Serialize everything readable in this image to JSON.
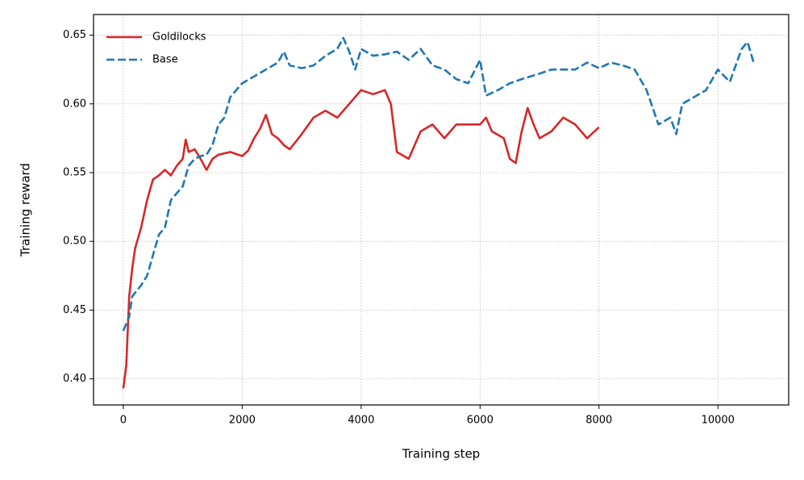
{
  "chart_data": {
    "type": "line",
    "xlabel": "Training step",
    "ylabel": "Training reward",
    "xlim": [
      -500,
      11190
    ],
    "ylim": [
      0.381,
      0.665
    ],
    "xticks": [
      0,
      2000,
      4000,
      6000,
      8000,
      10000
    ],
    "yticks": [
      {
        "value": 0.4,
        "label": "0.40"
      },
      {
        "value": 0.45,
        "label": "0.45"
      },
      {
        "value": 0.5,
        "label": "0.50"
      },
      {
        "value": 0.55,
        "label": "0.55"
      },
      {
        "value": 0.6,
        "label": "0.60"
      },
      {
        "value": 0.65,
        "label": "0.65"
      }
    ],
    "grid": true,
    "legend": "upper left",
    "series": [
      {
        "name": "Goldilocks",
        "color": "#d62728",
        "dash": "solid",
        "x": [
          0,
          50,
          100,
          150,
          200,
          300,
          350,
          400,
          500,
          600,
          700,
          800,
          900,
          1000,
          1050,
          1100,
          1200,
          1300,
          1400,
          1500,
          1600,
          1800,
          2000,
          2100,
          2200,
          2300,
          2400,
          2500,
          2600,
          2700,
          2800,
          3000,
          3200,
          3400,
          3600,
          3800,
          4000,
          4200,
          4400,
          4500,
          4600,
          4800,
          5000,
          5200,
          5400,
          5600,
          5800,
          6000,
          6100,
          6200,
          6400,
          6500,
          6600,
          6700,
          6800,
          6900,
          7000,
          7200,
          7400,
          7600,
          7800,
          8000
        ],
        "values": [
          0.393,
          0.41,
          0.46,
          0.48,
          0.495,
          0.51,
          0.52,
          0.53,
          0.545,
          0.548,
          0.552,
          0.548,
          0.555,
          0.56,
          0.574,
          0.565,
          0.567,
          0.56,
          0.552,
          0.56,
          0.563,
          0.565,
          0.562,
          0.566,
          0.575,
          0.582,
          0.592,
          0.578,
          0.575,
          0.57,
          0.567,
          0.578,
          0.59,
          0.595,
          0.59,
          0.6,
          0.61,
          0.607,
          0.61,
          0.6,
          0.565,
          0.56,
          0.58,
          0.585,
          0.575,
          0.585,
          0.585,
          0.585,
          0.59,
          0.58,
          0.575,
          0.56,
          0.557,
          0.58,
          0.597,
          0.585,
          0.575,
          0.58,
          0.59,
          0.585,
          0.575,
          0.583
        ]
      },
      {
        "name": "Base",
        "color": "#1f77b4",
        "dash": "dashed",
        "x": [
          0,
          100,
          150,
          300,
          400,
          500,
          600,
          700,
          800,
          900,
          1000,
          1100,
          1200,
          1300,
          1400,
          1500,
          1600,
          1700,
          1800,
          2000,
          2200,
          2400,
          2600,
          2700,
          2800,
          3000,
          3200,
          3400,
          3600,
          3700,
          3800,
          3900,
          4000,
          4200,
          4400,
          4600,
          4800,
          5000,
          5200,
          5400,
          5600,
          5800,
          6000,
          6100,
          6300,
          6500,
          6700,
          7000,
          7200,
          7400,
          7600,
          7800,
          8000,
          8200,
          8400,
          8600,
          8800,
          9000,
          9200,
          9300,
          9400,
          9600,
          9800,
          10000,
          10200,
          10400,
          10500,
          10600
        ],
        "values": [
          0.435,
          0.445,
          0.46,
          0.468,
          0.475,
          0.49,
          0.505,
          0.51,
          0.53,
          0.535,
          0.54,
          0.555,
          0.56,
          0.562,
          0.563,
          0.57,
          0.585,
          0.59,
          0.605,
          0.615,
          0.62,
          0.625,
          0.63,
          0.638,
          0.628,
          0.626,
          0.628,
          0.635,
          0.64,
          0.648,
          0.638,
          0.625,
          0.64,
          0.635,
          0.636,
          0.638,
          0.632,
          0.64,
          0.628,
          0.625,
          0.618,
          0.615,
          0.632,
          0.606,
          0.61,
          0.615,
          0.618,
          0.622,
          0.625,
          0.625,
          0.625,
          0.63,
          0.626,
          0.63,
          0.628,
          0.625,
          0.61,
          0.585,
          0.59,
          0.578,
          0.6,
          0.605,
          0.61,
          0.625,
          0.616,
          0.64,
          0.645,
          0.63
        ]
      }
    ]
  }
}
